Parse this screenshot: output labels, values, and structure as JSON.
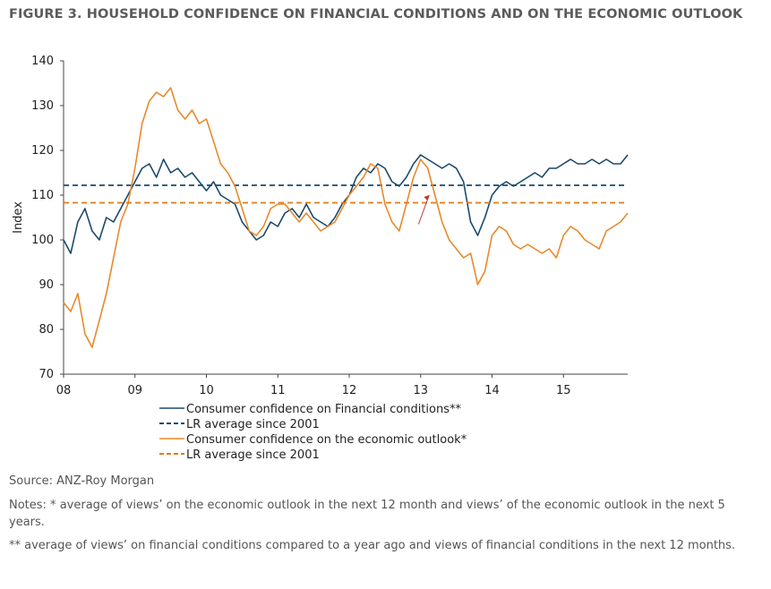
{
  "title": "FIGURE 3. HOUSEHOLD CONFIDENCE ON FINANCIAL CONDITIONS AND ON THE ECONOMIC OUTLOOK",
  "source": "Source: ANZ-Roy Morgan",
  "notes": [
    "Notes: * average of views’ on the economic outlook in the next 12 month and views’ of the economic outlook in the next 5 years.",
    "** average of views’ on financial conditions compared to a year ago and  views of financial conditions in the next 12 months."
  ],
  "colors": {
    "financial": "#1b4a6b",
    "financial_avg": "#1b4a6b",
    "economic": "#e8892b",
    "economic_avg": "#e07a18",
    "axis": "#444444",
    "arrow": "#c0392b"
  },
  "chart_data": {
    "type": "line",
    "ylabel": "Index",
    "xlabel": "",
    "ylim": [
      70,
      140
    ],
    "yticks": [
      "70",
      "80",
      "90",
      "100",
      "110",
      "120",
      "130",
      "140"
    ],
    "xlim": [
      2008.0,
      2015.9
    ],
    "xticks": [
      {
        "x": 2008,
        "label": "08"
      },
      {
        "x": 2009,
        "label": "09"
      },
      {
        "x": 2010,
        "label": "10"
      },
      {
        "x": 2011,
        "label": "11"
      },
      {
        "x": 2012,
        "label": "12"
      },
      {
        "x": 2013,
        "label": "13"
      },
      {
        "x": 2014,
        "label": "14"
      },
      {
        "x": 2015,
        "label": "15"
      }
    ],
    "legend_position": "bottom",
    "series": [
      {
        "name": "Consumer confidence on Financial conditions**",
        "style": "solid",
        "x": [
          2008.0,
          2008.1,
          2008.2,
          2008.3,
          2008.4,
          2008.5,
          2008.6,
          2008.7,
          2008.8,
          2008.9,
          2009.0,
          2009.1,
          2009.2,
          2009.3,
          2009.4,
          2009.5,
          2009.6,
          2009.7,
          2009.8,
          2009.9,
          2010.0,
          2010.1,
          2010.2,
          2010.3,
          2010.4,
          2010.5,
          2010.6,
          2010.7,
          2010.8,
          2010.9,
          2011.0,
          2011.1,
          2011.2,
          2011.3,
          2011.4,
          2011.5,
          2011.6,
          2011.7,
          2011.8,
          2011.9,
          2012.0,
          2012.1,
          2012.2,
          2012.3,
          2012.4,
          2012.5,
          2012.6,
          2012.7,
          2012.8,
          2012.9,
          2013.0,
          2013.1,
          2013.2,
          2013.3,
          2013.4,
          2013.5,
          2013.6,
          2013.7,
          2013.8,
          2013.9,
          2014.0,
          2014.1,
          2014.2,
          2014.3,
          2014.4,
          2014.5,
          2014.6,
          2014.7,
          2014.8,
          2014.9,
          2015.0,
          2015.1,
          2015.2,
          2015.3,
          2015.4,
          2015.5,
          2015.6,
          2015.7,
          2015.8,
          2015.9
        ],
        "values": [
          100,
          97,
          104,
          107,
          102,
          100,
          105,
          104,
          107,
          110,
          113,
          116,
          117,
          114,
          118,
          115,
          116,
          114,
          115,
          113,
          111,
          113,
          110,
          109,
          108,
          104,
          102,
          100,
          101,
          104,
          103,
          106,
          107,
          105,
          108,
          105,
          104,
          103,
          105,
          108,
          110,
          114,
          116,
          115,
          117,
          116,
          113,
          112,
          114,
          117,
          119,
          118,
          117,
          116,
          117,
          116,
          113,
          104,
          101,
          105,
          110,
          112,
          113,
          112,
          113,
          114,
          115,
          114,
          116,
          116,
          117,
          118,
          117,
          117,
          118,
          117,
          118,
          117,
          117,
          119
        ]
      },
      {
        "name": "LR average since 2001",
        "style": "dashed",
        "x": [
          2008.0,
          2015.9
        ],
        "values": [
          112.2,
          112.2
        ]
      },
      {
        "name": "Consumer confidence on the economic outlook*",
        "style": "solid",
        "x": [
          2008.0,
          2008.1,
          2008.2,
          2008.3,
          2008.4,
          2008.5,
          2008.6,
          2008.7,
          2008.8,
          2008.9,
          2009.0,
          2009.1,
          2009.2,
          2009.3,
          2009.4,
          2009.5,
          2009.6,
          2009.7,
          2009.8,
          2009.9,
          2010.0,
          2010.1,
          2010.2,
          2010.3,
          2010.4,
          2010.5,
          2010.6,
          2010.7,
          2010.8,
          2010.9,
          2011.0,
          2011.1,
          2011.2,
          2011.3,
          2011.4,
          2011.5,
          2011.6,
          2011.7,
          2011.8,
          2011.9,
          2012.0,
          2012.1,
          2012.2,
          2012.3,
          2012.4,
          2012.5,
          2012.6,
          2012.7,
          2012.8,
          2012.9,
          2013.0,
          2013.1,
          2013.2,
          2013.3,
          2013.4,
          2013.5,
          2013.6,
          2013.7,
          2013.8,
          2013.9,
          2014.0,
          2014.1,
          2014.2,
          2014.3,
          2014.4,
          2014.5,
          2014.6,
          2014.7,
          2014.8,
          2014.9,
          2015.0,
          2015.1,
          2015.2,
          2015.3,
          2015.4,
          2015.5,
          2015.6,
          2015.7,
          2015.8,
          2015.9
        ],
        "values": [
          86,
          84,
          88,
          79,
          76,
          82,
          88,
          96,
          104,
          108,
          116,
          126,
          131,
          133,
          132,
          134,
          129,
          127,
          129,
          126,
          127,
          122,
          117,
          115,
          112,
          107,
          102,
          101,
          103,
          107,
          108,
          108,
          106,
          104,
          106,
          104,
          102,
          103,
          104,
          107,
          110,
          112,
          114,
          117,
          116,
          108,
          104,
          102,
          108,
          114,
          118,
          116,
          110,
          104,
          100,
          98,
          96,
          97,
          90,
          93,
          101,
          103,
          102,
          99,
          98,
          99,
          98,
          97,
          98,
          96,
          101,
          103,
          102,
          100,
          99,
          98,
          102,
          103,
          104,
          106
        ]
      },
      {
        "name": "LR average since 2001",
        "style": "dashed",
        "x": [
          2008.0,
          2015.9
        ],
        "values": [
          108.3,
          108.3
        ]
      }
    ]
  }
}
